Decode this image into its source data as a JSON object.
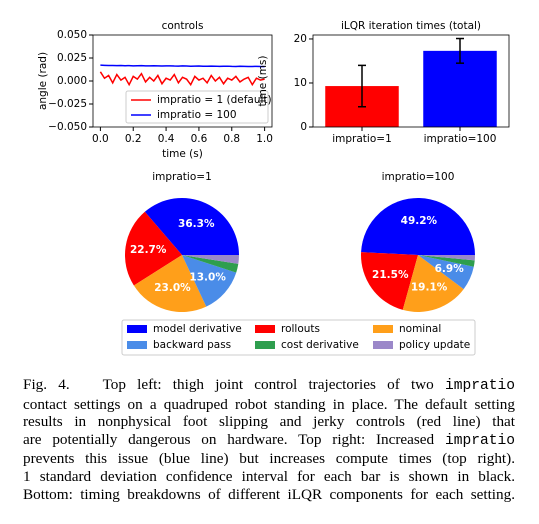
{
  "chart_data": [
    {
      "type": "line",
      "title": "controls",
      "xlabel": "time (s)",
      "ylabel": "angle (rad)",
      "x": [
        0,
        0.025,
        0.05,
        0.075,
        0.1,
        0.125,
        0.15,
        0.175,
        0.2,
        0.225,
        0.25,
        0.275,
        0.3,
        0.325,
        0.35,
        0.375,
        0.4,
        0.425,
        0.45,
        0.475,
        0.5,
        0.525,
        0.55,
        0.575,
        0.6,
        0.625,
        0.65,
        0.675,
        0.7,
        0.725,
        0.75,
        0.775,
        0.8,
        0.825,
        0.85,
        0.875,
        0.9,
        0.925,
        0.95,
        0.975,
        1
      ],
      "series": [
        {
          "name": "impratio = 1 (default)",
          "color": "#ff0000",
          "values": [
            0.01,
            0.003,
            0.006,
            -0.002,
            0.007,
            0.001,
            0.004,
            -0.004,
            0.005,
            0.002,
            0.008,
            -0.001,
            0.004,
            0.0,
            0.006,
            -0.003,
            0.003,
            0.001,
            0.007,
            -0.002,
            0.004,
            0.002,
            -0.004,
            0.005,
            0.001,
            0.003,
            -0.002,
            0.006,
            0.0,
            0.004,
            -0.003,
            0.003,
            0.001,
            0.005,
            -0.001,
            0.002,
            0.004,
            -0.004,
            0.003,
            0.001,
            0.002
          ]
        },
        {
          "name": "impratio = 100",
          "color": "#0000ff",
          "values": [
            0.0172,
            0.017,
            0.0168,
            0.0169,
            0.0167,
            0.0168,
            0.0166,
            0.0167,
            0.0165,
            0.0166,
            0.0167,
            0.0165,
            0.0164,
            0.0166,
            0.0165,
            0.0163,
            0.0164,
            0.0165,
            0.0163,
            0.0162,
            0.0164,
            0.0163,
            0.0161,
            0.0162,
            0.0163,
            0.0161,
            0.016,
            0.0162,
            0.0161,
            0.0159,
            0.016,
            0.0161,
            0.0159,
            0.0158,
            0.016,
            0.0159,
            0.0157,
            0.0158,
            0.0159,
            0.0157,
            0.0156
          ]
        }
      ],
      "xlim": [
        -0.045,
        1.045
      ],
      "xticks": [
        {
          "value": 0,
          "label": "0.0"
        },
        {
          "value": 0.2,
          "label": "0.2"
        },
        {
          "value": 0.4,
          "label": "0.4"
        },
        {
          "value": 0.6,
          "label": "0.6"
        },
        {
          "value": 0.8,
          "label": "0.8"
        },
        {
          "value": 1,
          "label": "1.0"
        }
      ],
      "ylim": [
        -0.05,
        0.05
      ],
      "yticks": [
        {
          "value": -0.05,
          "label": "−0.050"
        },
        {
          "value": -0.025,
          "label": "−0.025"
        },
        {
          "value": 0,
          "label": "0.000"
        },
        {
          "value": 0.025,
          "label": "0.025"
        },
        {
          "value": 0.05,
          "label": "0.050"
        }
      ],
      "legend": "lower right"
    },
    {
      "type": "bar",
      "title": "iLQR iteration times (total)",
      "ylabel": "time (ms)",
      "categories": [
        "impratio=1",
        "impratio=100"
      ],
      "values": [
        9.3,
        17.3
      ],
      "errors": [
        4.7,
        2.8
      ],
      "colors": [
        "#ff0000",
        "#0000ff"
      ],
      "error_color": "#000000",
      "ylim": [
        0,
        20.9
      ],
      "yticks": [
        0,
        10,
        20
      ]
    },
    {
      "type": "pie",
      "title": "impratio=1",
      "categories": [
        "model derivative",
        "rollouts",
        "nominal",
        "backward pass",
        "cost derivative",
        "policy update"
      ],
      "colors": [
        "#0000ff",
        "#ff0000",
        "#ff9f1a",
        "#4a8ce8",
        "#2e9e4e",
        "#9b88c9"
      ],
      "values": [
        36.3,
        22.7,
        23.0,
        13.0,
        2.5,
        2.5
      ],
      "value_labels": [
        "36.3%",
        "22.7%",
        "23.0%",
        "13.0%",
        null,
        null
      ],
      "legend": "bottom"
    },
    {
      "type": "pie",
      "title": "impratio=100",
      "values": [
        49.2,
        21.5,
        19.1,
        6.9,
        1.8,
        1.5
      ],
      "value_labels": [
        "49.2%",
        "21.5%",
        "19.1%",
        "6.9%",
        null,
        null
      ]
    }
  ],
  "caption": {
    "lines": [
      [
        {
          "text": "Fig. 4.",
          "label": true
        },
        {
          "text": "Top left: thigh joint control trajectories of two"
        },
        {
          "text": "impratio",
          "mono": true
        }
      ],
      [
        {
          "text": "contact settings on a quadruped robot standing in place. The default setting"
        }
      ],
      [
        {
          "text": "results in nonphysical foot slipping and jerky controls (red line) that"
        }
      ],
      [
        {
          "text": "are potentially dangerous on hardware. Top right: Increased"
        },
        {
          "text": "impratio",
          "mono": true
        }
      ],
      [
        {
          "text": "prevents this issue (blue line) but increases compute times (top right)."
        }
      ],
      [
        {
          "text": "1 standard deviation confidence interval for each bar is shown in black."
        }
      ],
      [
        {
          "text": "Bottom: timing breakdowns of different iLQR components for each setting."
        }
      ]
    ]
  }
}
